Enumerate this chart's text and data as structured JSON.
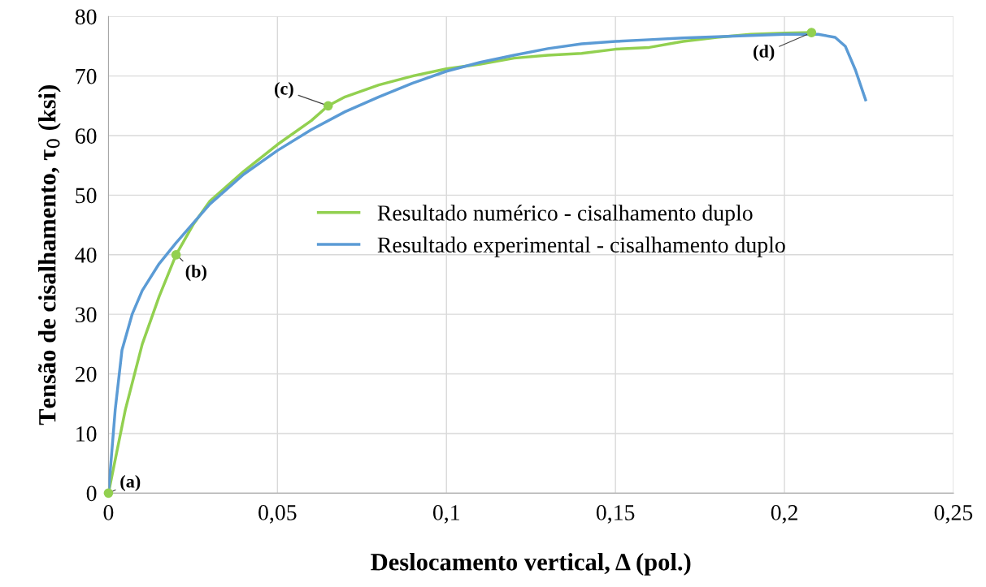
{
  "chart_data": {
    "type": "line",
    "xlabel": "Deslocamento vertical, Δ (pol.)",
    "ylabel": "Tensão de cisalhamento, τ$_{0}$ (ksi)",
    "xlim": [
      0,
      0.25
    ],
    "xticks": [
      {
        "value": 0,
        "label": "0"
      },
      {
        "value": 0.05,
        "label": "0,05"
      },
      {
        "value": 0.1,
        "label": "0,1"
      },
      {
        "value": 0.15,
        "label": "0,15"
      },
      {
        "value": 0.2,
        "label": "0,2"
      },
      {
        "value": 0.25,
        "label": "0,25"
      }
    ],
    "ylim": [
      0,
      80
    ],
    "yticks": [
      0,
      10,
      20,
      30,
      40,
      50,
      60,
      70,
      80
    ],
    "grid": true,
    "legend": "center",
    "marker": "none",
    "line_style": "solid",
    "series": [
      {
        "name": "Resultado numérico - cisalhamento duplo",
        "color": "#92d050",
        "x": [
          0,
          0.005,
          0.01,
          0.015,
          0.02,
          0.025,
          0.03,
          0.04,
          0.05,
          0.06,
          0.065,
          0.07,
          0.08,
          0.09,
          0.1,
          0.11,
          0.12,
          0.13,
          0.14,
          0.15,
          0.16,
          0.17,
          0.18,
          0.19,
          0.2,
          0.208
        ],
        "values": [
          0,
          14,
          25,
          33,
          40,
          45,
          49,
          54,
          58.5,
          62.5,
          65,
          66.5,
          68.5,
          70,
          71.2,
          72,
          73,
          73.5,
          73.8,
          74.5,
          74.8,
          75.8,
          76.5,
          77,
          77.2,
          77.3
        ]
      },
      {
        "name": "Resultado experimental - cisalhamento duplo",
        "color": "#5b9bd5",
        "x": [
          0,
          0.002,
          0.004,
          0.007,
          0.01,
          0.015,
          0.02,
          0.03,
          0.04,
          0.05,
          0.06,
          0.07,
          0.08,
          0.09,
          0.1,
          0.11,
          0.12,
          0.13,
          0.14,
          0.15,
          0.16,
          0.17,
          0.18,
          0.19,
          0.2,
          0.21,
          0.215,
          0.218,
          0.221,
          0.224
        ],
        "values": [
          0,
          14,
          24,
          30,
          34,
          38.5,
          42,
          48.5,
          53.5,
          57.5,
          61,
          64,
          66.5,
          68.8,
          70.8,
          72.3,
          73.5,
          74.6,
          75.4,
          75.8,
          76.1,
          76.4,
          76.6,
          76.8,
          77,
          77,
          76.5,
          75,
          71,
          66
        ]
      },
      {
        "type": "scatter",
        "color": "#92d050",
        "marker": "circle",
        "x": [
          0,
          0.02,
          0.065,
          0.208
        ],
        "values": [
          0,
          40,
          65,
          77.3
        ]
      }
    ],
    "annotations": [
      {
        "text": "(a)",
        "x": 0,
        "y": 0
      },
      {
        "text": "(b)",
        "x": 0.02,
        "y": 40
      },
      {
        "text": "(c)",
        "x": 0.065,
        "y": 65
      },
      {
        "text": "(d)",
        "x": 0.208,
        "y": 77.3
      }
    ]
  }
}
